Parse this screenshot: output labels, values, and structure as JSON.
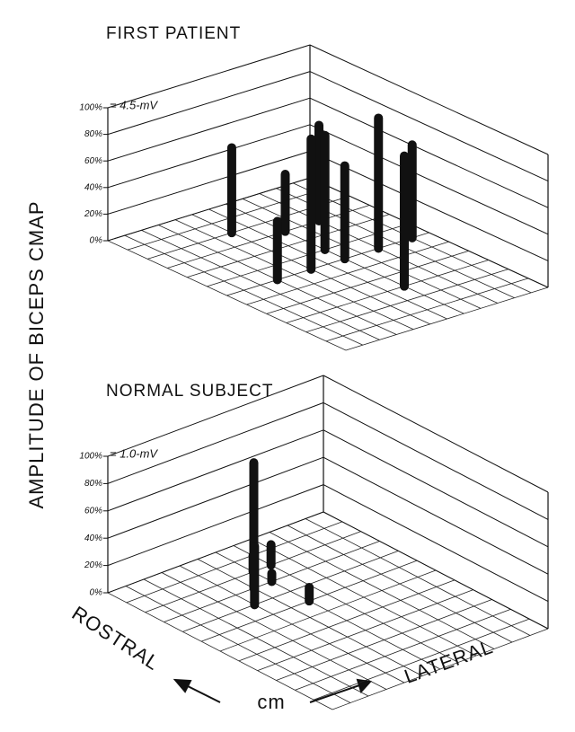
{
  "axis_label": "AMPLITUDE OF BICEPS CMAP",
  "rostral_label": "ROSTRAL",
  "lateral_label": "LATERAL",
  "unit_label": "cm",
  "chart_data": [
    {
      "type": "bar3d",
      "title": "FIRST PATIENT",
      "annotation": "= 4.5-mV",
      "x": [
        5,
        3,
        7,
        5,
        7,
        9,
        7,
        9,
        7,
        11
      ],
      "y": [
        2,
        6,
        3,
        6,
        5,
        3,
        6,
        6,
        9,
        6
      ],
      "values": [
        64,
        44,
        43,
        98,
        86,
        72,
        70,
        98,
        98,
        70
      ],
      "xlim": [
        0,
        12
      ],
      "ylim": [
        0,
        12
      ],
      "zlim": [
        0,
        100
      ],
      "zticks": [
        {
          "value": 0,
          "label": "0%"
        },
        {
          "value": 20,
          "label": "20%"
        },
        {
          "value": 40,
          "label": "40%"
        },
        {
          "value": 60,
          "label": "60%"
        },
        {
          "value": 80,
          "label": "80%"
        },
        {
          "value": 100,
          "label": "100%"
        }
      ],
      "color": "#111111"
    },
    {
      "type": "bar3d",
      "title": "NORMAL SUBJECT",
      "annotation": "= 1.0-mV",
      "x": [
        5,
        6,
        4,
        6,
        7,
        6
      ],
      "y": [
        3,
        2,
        4,
        3,
        2,
        5
      ],
      "values": [
        92,
        12,
        43,
        6,
        15,
        10
      ],
      "xlim": [
        0,
        12
      ],
      "ylim": [
        0,
        12
      ],
      "zlim": [
        0,
        100
      ],
      "zticks": [
        {
          "value": 0,
          "label": "0%"
        },
        {
          "value": 20,
          "label": "20%"
        },
        {
          "value": 40,
          "label": "40%"
        },
        {
          "value": 60,
          "label": "60%"
        },
        {
          "value": 80,
          "label": "80%"
        },
        {
          "value": 100,
          "label": "100%"
        }
      ],
      "color": "#111111"
    }
  ]
}
